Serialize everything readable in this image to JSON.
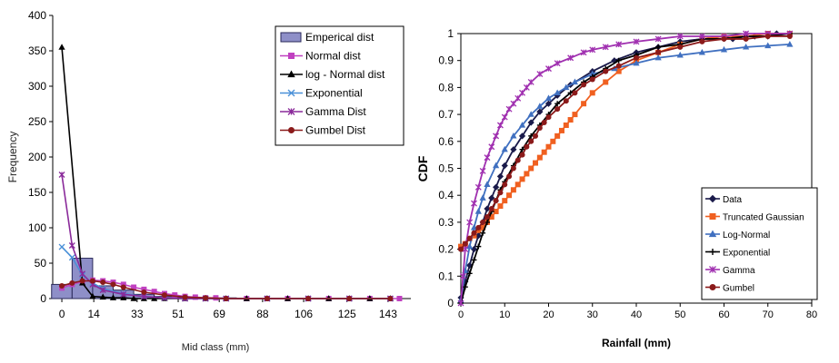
{
  "chart_data": [
    {
      "type": "bar",
      "xlabel": "Mid class  (mm)",
      "ylabel": "Frequency",
      "ylim": [
        0,
        400
      ],
      "yticks": [
        0,
        50,
        100,
        150,
        200,
        250,
        300,
        350,
        400
      ],
      "xlim": [
        -4,
        153
      ],
      "xtick_labels": [
        "0",
        "14",
        "33",
        "51",
        "69",
        "88",
        "106",
        "125",
        "143"
      ],
      "xtick_values": [
        0,
        14,
        33,
        51,
        69,
        88,
        106,
        125,
        143
      ],
      "grid": false,
      "legend_position": "top-right",
      "bars": {
        "name": "Emperical dist",
        "color": "#8e8fc8",
        "x": [
          0,
          9,
          18,
          27,
          36,
          45,
          54,
          63,
          72,
          81,
          90,
          99,
          108,
          117,
          126,
          135,
          144
        ],
        "values": [
          20,
          57,
          18,
          12,
          6,
          3,
          2,
          1,
          1,
          0,
          0,
          0,
          0,
          0,
          0,
          0,
          0
        ],
        "width": 9
      },
      "series": [
        {
          "name": "Normal dist",
          "color": "#c040c0",
          "marker": "square",
          "x": [
            0,
            4.5,
            9,
            13.5,
            18,
            22.5,
            27,
            31.5,
            36,
            40.5,
            45,
            49.5,
            54,
            58.5,
            63,
            67.5,
            72,
            81,
            90,
            99,
            108,
            117,
            126,
            135,
            144,
            148
          ],
          "values": [
            15,
            20,
            24,
            26,
            25,
            23,
            20,
            16,
            13,
            10,
            7,
            5,
            3,
            2,
            1,
            1,
            0,
            0,
            0,
            0,
            0,
            0,
            0,
            0,
            0,
            0
          ]
        },
        {
          "name": "log - Normal dist",
          "color": "#000000",
          "marker": "triangle",
          "x": [
            0,
            9,
            13.5,
            18,
            22.5,
            27,
            31.5,
            36,
            40.5,
            45,
            54,
            63,
            72,
            81,
            90,
            99,
            108,
            117,
            126,
            135,
            144
          ],
          "values": [
            355,
            22,
            3,
            2,
            1,
            1,
            0,
            0,
            0,
            0,
            0,
            0,
            0,
            0,
            0,
            0,
            0,
            0,
            0,
            0,
            0
          ]
        },
        {
          "name": "Exponential",
          "color": "#4a90d8",
          "marker": "x",
          "x": [
            0,
            4.5,
            9,
            13.5,
            18,
            27,
            36,
            45,
            54,
            63,
            72,
            90,
            108,
            126,
            144
          ],
          "values": [
            73,
            58,
            33,
            22,
            14,
            7,
            3,
            1,
            0,
            0,
            0,
            0,
            0,
            0,
            0
          ]
        },
        {
          "name": "Gamma Dist",
          "color": "#8a2a9a",
          "marker": "star",
          "x": [
            0,
            4.5,
            9,
            13.5,
            18,
            27,
            36,
            45,
            54,
            63,
            72,
            90,
            108,
            126,
            144
          ],
          "values": [
            175,
            75,
            35,
            20,
            12,
            6,
            3,
            1,
            0,
            0,
            0,
            0,
            0,
            0,
            0
          ]
        },
        {
          "name": "Gumbel Dist",
          "color": "#8b1a1a",
          "marker": "circle",
          "x": [
            0,
            4.5,
            9,
            13.5,
            18,
            22.5,
            27,
            36,
            45,
            54,
            63,
            72,
            90,
            108,
            126,
            144
          ],
          "values": [
            18,
            22,
            25,
            25,
            23,
            20,
            16,
            9,
            5,
            2,
            1,
            0,
            0,
            0,
            0,
            0
          ]
        }
      ]
    },
    {
      "type": "line",
      "xlabel": "Rainfall (mm)",
      "ylabel": "CDF",
      "xlim": [
        0,
        80
      ],
      "ylim": [
        0,
        1
      ],
      "xticks": [
        0,
        10,
        20,
        30,
        40,
        50,
        60,
        70,
        80
      ],
      "xtick_labels": [
        "0",
        "10",
        "20",
        "30",
        "40",
        "50",
        "60",
        "70",
        "80"
      ],
      "yticks": [
        0,
        0.1,
        0.2,
        0.3,
        0.4,
        0.5,
        0.6,
        0.7,
        0.8,
        0.9,
        1
      ],
      "ytick_labels": [
        "0",
        "0.1",
        "0.2",
        "0.3",
        "0.4",
        "0.5",
        "0.6",
        "0.7",
        "0.8",
        "0.9",
        "1"
      ],
      "grid": false,
      "legend_position": "bottom-right",
      "series": [
        {
          "name": "Data",
          "color": "#1a1a4a",
          "marker": "diamond",
          "x": [
            0,
            1,
            2,
            3,
            4,
            5,
            6,
            7,
            8,
            9,
            10,
            12,
            14,
            16,
            18,
            20,
            22,
            25,
            30,
            35,
            40,
            45,
            50,
            55,
            60,
            62,
            65,
            67,
            70,
            72,
            75
          ],
          "values": [
            0.02,
            0.08,
            0.14,
            0.2,
            0.25,
            0.3,
            0.35,
            0.39,
            0.43,
            0.47,
            0.51,
            0.57,
            0.62,
            0.67,
            0.71,
            0.74,
            0.77,
            0.81,
            0.86,
            0.9,
            0.93,
            0.95,
            0.97,
            0.98,
            0.99,
            0.98,
            0.99,
            0.99,
            0.99,
            1.0,
            1.0
          ]
        },
        {
          "name": "Truncated Gaussian",
          "color": "#f06020",
          "marker": "square",
          "x": [
            0,
            1,
            2,
            3,
            4,
            5,
            6,
            7,
            8,
            9,
            10,
            11,
            12,
            13,
            14,
            15,
            16,
            17,
            18,
            19,
            20,
            21,
            22,
            23,
            24,
            25,
            26,
            28,
            30,
            33,
            36,
            40,
            45,
            50,
            55,
            60,
            65,
            70,
            75
          ],
          "values": [
            0.21,
            0.22,
            0.24,
            0.25,
            0.27,
            0.28,
            0.3,
            0.32,
            0.34,
            0.36,
            0.38,
            0.4,
            0.42,
            0.44,
            0.46,
            0.48,
            0.5,
            0.52,
            0.54,
            0.56,
            0.58,
            0.6,
            0.62,
            0.64,
            0.66,
            0.68,
            0.7,
            0.74,
            0.78,
            0.82,
            0.86,
            0.9,
            0.93,
            0.96,
            0.98,
            0.99,
            0.99,
            1.0,
            1.0
          ]
        },
        {
          "name": "Log-Normal",
          "color": "#4070c0",
          "marker": "triangle",
          "x": [
            0,
            1,
            2,
            3,
            4,
            5,
            6,
            8,
            10,
            12,
            14,
            16,
            18,
            20,
            22,
            24,
            26,
            30,
            35,
            40,
            45,
            50,
            55,
            60,
            65,
            70,
            75
          ],
          "values": [
            0.01,
            0.12,
            0.21,
            0.28,
            0.34,
            0.39,
            0.44,
            0.51,
            0.57,
            0.62,
            0.66,
            0.7,
            0.73,
            0.76,
            0.78,
            0.8,
            0.82,
            0.85,
            0.87,
            0.89,
            0.91,
            0.92,
            0.93,
            0.94,
            0.95,
            0.955,
            0.96
          ]
        },
        {
          "name": "Exponential",
          "color": "#000000",
          "marker": "plus",
          "x": [
            0,
            1,
            2,
            3,
            4,
            5,
            6,
            7,
            8,
            9,
            10,
            12,
            14,
            16,
            18,
            20,
            22,
            25,
            28,
            30,
            33,
            36,
            40,
            45,
            50,
            55,
            60,
            65,
            70,
            75
          ],
          "values": [
            0.0,
            0.06,
            0.11,
            0.16,
            0.21,
            0.26,
            0.3,
            0.34,
            0.38,
            0.42,
            0.45,
            0.51,
            0.57,
            0.62,
            0.66,
            0.7,
            0.74,
            0.78,
            0.82,
            0.84,
            0.87,
            0.9,
            0.92,
            0.95,
            0.96,
            0.98,
            0.98,
            0.99,
            0.99,
            1.0
          ]
        },
        {
          "name": "Gamma",
          "color": "#a030b0",
          "marker": "star",
          "x": [
            0,
            0.5,
            1,
            2,
            3,
            4,
            5,
            6,
            7,
            8,
            9,
            10,
            11,
            12,
            13,
            14,
            15,
            16,
            18,
            20,
            22,
            25,
            28,
            30,
            33,
            36,
            40,
            45,
            50,
            55,
            60,
            65,
            70,
            75
          ],
          "values": [
            0.0,
            0.1,
            0.2,
            0.3,
            0.37,
            0.43,
            0.49,
            0.54,
            0.58,
            0.62,
            0.66,
            0.69,
            0.72,
            0.74,
            0.76,
            0.78,
            0.8,
            0.82,
            0.85,
            0.87,
            0.89,
            0.91,
            0.93,
            0.94,
            0.95,
            0.96,
            0.97,
            0.98,
            0.99,
            0.99,
            0.99,
            1.0,
            1.0,
            1.0
          ]
        },
        {
          "name": "Gumbel",
          "color": "#8b1a1a",
          "marker": "circle",
          "x": [
            0,
            1,
            2,
            3,
            4,
            5,
            6,
            7,
            8,
            9,
            10,
            11,
            12,
            13,
            14,
            15,
            16,
            17,
            18,
            19,
            20,
            22,
            24,
            26,
            28,
            30,
            33,
            36,
            40,
            45,
            50,
            55,
            60,
            65,
            70,
            75
          ],
          "values": [
            0.2,
            0.22,
            0.24,
            0.26,
            0.28,
            0.3,
            0.32,
            0.35,
            0.38,
            0.41,
            0.44,
            0.47,
            0.5,
            0.53,
            0.55,
            0.58,
            0.6,
            0.62,
            0.65,
            0.67,
            0.69,
            0.72,
            0.75,
            0.78,
            0.81,
            0.83,
            0.86,
            0.88,
            0.91,
            0.93,
            0.95,
            0.97,
            0.98,
            0.98,
            0.99,
            0.99
          ]
        }
      ]
    }
  ]
}
